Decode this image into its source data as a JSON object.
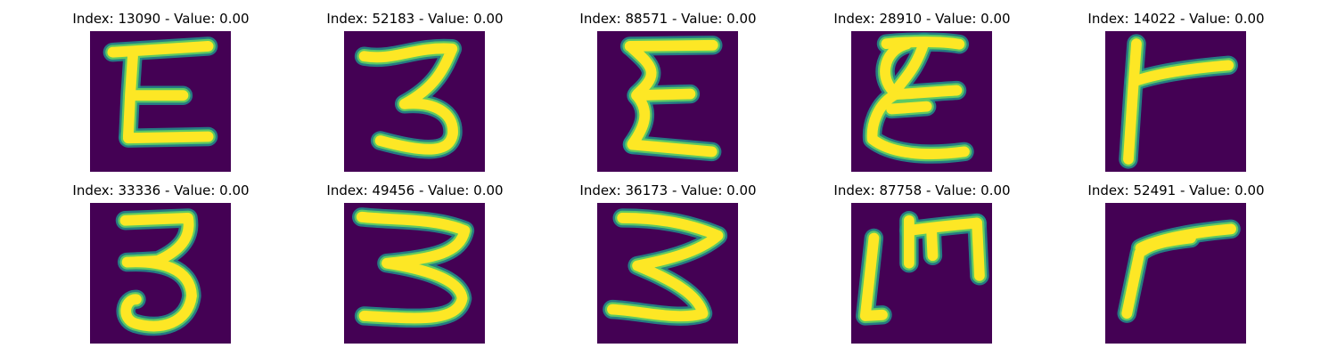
{
  "colors": {
    "background": "#440154",
    "stroke_core": "#fde725",
    "stroke_edge": "#21918c",
    "stroke_mid": "#5ec962"
  },
  "samples": [
    {
      "index": "13090",
      "value": "0.00",
      "label": "Index: 13090 - Value: 0.00"
    },
    {
      "index": "52183",
      "value": "0.00",
      "label": "Index: 52183 - Value: 0.00"
    },
    {
      "index": "88571",
      "value": "0.00",
      "label": "Index: 88571 - Value: 0.00"
    },
    {
      "index": "28910",
      "value": "0.00",
      "label": "Index: 28910 - Value: 0.00"
    },
    {
      "index": "14022",
      "value": "0.00",
      "label": "Index: 14022 - Value: 0.00"
    },
    {
      "index": "33336",
      "value": "0.00",
      "label": "Index: 33336 - Value: 0.00"
    },
    {
      "index": "49456",
      "value": "0.00",
      "label": "Index: 49456 - Value: 0.00"
    },
    {
      "index": "36173",
      "value": "0.00",
      "label": "Index: 36173 - Value: 0.00"
    },
    {
      "index": "87758",
      "value": "0.00",
      "label": "Index: 87758 - Value: 0.00"
    },
    {
      "index": "52491",
      "value": "0.00",
      "label": "Index: 52491 - Value: 0.00"
    }
  ]
}
